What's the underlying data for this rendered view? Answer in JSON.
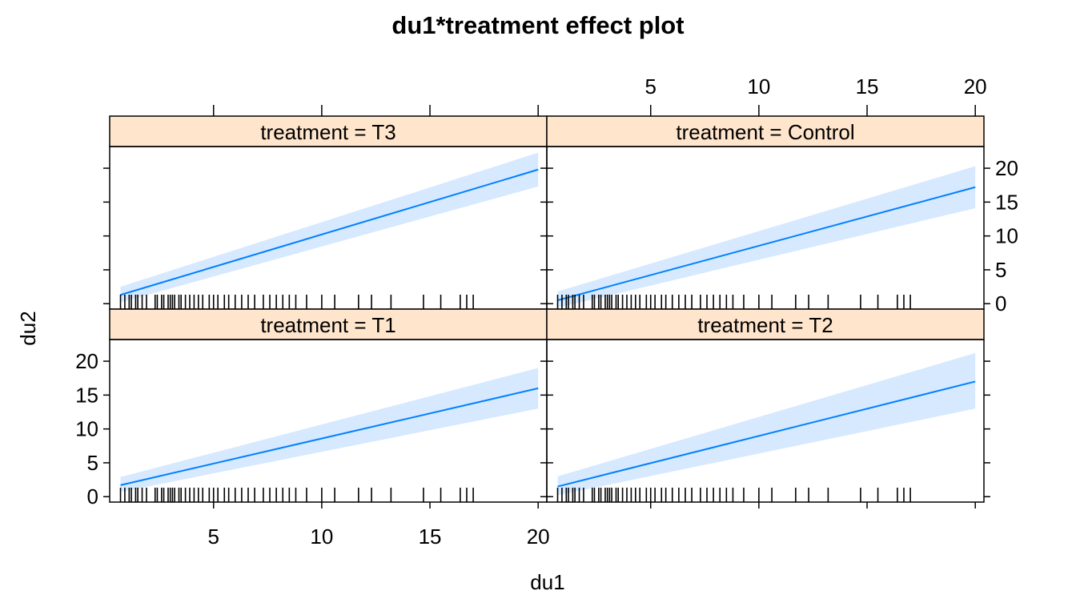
{
  "chart_data": {
    "type": "line",
    "title": "du1*treatment effect plot",
    "xlabel": "du1",
    "ylabel": "du2",
    "xlim": [
      0.2,
      20.4
    ],
    "ylim": [
      -0.8,
      23.2
    ],
    "x_ticks": [
      5,
      10,
      15,
      20
    ],
    "y_ticks": [
      0,
      5,
      10,
      15,
      20
    ],
    "colors": {
      "line": "#0080ff",
      "band": "#d6e9ff",
      "strip": "#ffe5cc",
      "rug": "#000000"
    },
    "panels": [
      {
        "strip": "treatment = T3",
        "x": [
          0.7,
          20
        ],
        "fit": [
          1.3,
          19.8
        ],
        "lower": [
          0.2,
          17.3
        ],
        "upper": [
          2.5,
          22.3
        ],
        "rug": [
          0.7,
          0.9,
          1.1,
          1.2,
          1.4,
          1.5,
          1.7,
          1.9,
          2.3,
          2.4,
          2.6,
          2.7,
          2.9,
          3.0,
          3.1,
          3.2,
          3.4,
          3.5,
          3.7,
          3.9,
          4.1,
          4.3,
          4.5,
          4.8,
          5.0,
          5.2,
          5.5,
          5.7,
          6.0,
          6.3,
          6.6,
          6.9,
          7.3,
          7.6,
          7.9,
          8.2,
          8.5,
          8.8,
          9.3,
          10.0,
          10.6,
          11.7,
          12.3,
          13.2,
          14.7,
          15.5,
          16.4,
          16.7,
          17.0
        ]
      },
      {
        "strip": "treatment = Control",
        "x": [
          0.7,
          20
        ],
        "fit": [
          0.5,
          17.2
        ],
        "lower": [
          -0.6,
          14.1
        ],
        "upper": [
          1.8,
          20.3
        ],
        "rug": [
          0.7,
          0.9,
          1.1,
          1.2,
          1.4,
          1.5,
          1.7,
          1.9,
          2.3,
          2.4,
          2.6,
          2.7,
          2.9,
          3.0,
          3.1,
          3.2,
          3.4,
          3.5,
          3.7,
          3.9,
          4.1,
          4.3,
          4.5,
          4.8,
          5.0,
          5.2,
          5.5,
          5.7,
          6.0,
          6.3,
          6.6,
          6.9,
          7.3,
          7.6,
          7.9,
          8.2,
          8.5,
          8.8,
          9.3,
          10.0,
          10.6,
          11.7,
          12.3,
          13.2,
          14.7,
          15.5,
          16.4,
          16.7,
          17.0
        ]
      },
      {
        "strip": "treatment = T1",
        "x": [
          0.7,
          20
        ],
        "fit": [
          1.7,
          16.0
        ],
        "lower": [
          0.7,
          13.0
        ],
        "upper": [
          2.9,
          19.0
        ],
        "rug": [
          0.7,
          0.9,
          1.1,
          1.2,
          1.4,
          1.5,
          1.7,
          1.9,
          2.3,
          2.4,
          2.6,
          2.7,
          2.9,
          3.0,
          3.1,
          3.2,
          3.4,
          3.5,
          3.7,
          3.9,
          4.1,
          4.3,
          4.5,
          4.8,
          5.0,
          5.2,
          5.5,
          5.7,
          6.0,
          6.3,
          6.6,
          6.9,
          7.3,
          7.6,
          7.9,
          8.2,
          8.5,
          8.8,
          9.3,
          10.0,
          10.6,
          11.7,
          12.3,
          13.2,
          14.7,
          15.5,
          16.4,
          16.7,
          17.0
        ]
      },
      {
        "strip": "treatment = T2",
        "x": [
          0.7,
          20
        ],
        "fit": [
          1.5,
          17.0
        ],
        "lower": [
          0.2,
          13.0
        ],
        "upper": [
          3.0,
          21.2
        ],
        "rug": [
          0.7,
          0.9,
          1.1,
          1.2,
          1.4,
          1.5,
          1.7,
          1.9,
          2.3,
          2.4,
          2.6,
          2.7,
          2.9,
          3.0,
          3.1,
          3.2,
          3.4,
          3.5,
          3.7,
          3.9,
          4.1,
          4.3,
          4.5,
          4.8,
          5.0,
          5.2,
          5.5,
          5.7,
          6.0,
          6.3,
          6.6,
          6.9,
          7.3,
          7.6,
          7.9,
          8.2,
          8.5,
          8.8,
          9.3,
          10.0,
          10.6,
          11.7,
          12.3,
          13.2,
          14.7,
          15.5,
          16.4,
          16.7,
          17.0
        ]
      }
    ]
  }
}
